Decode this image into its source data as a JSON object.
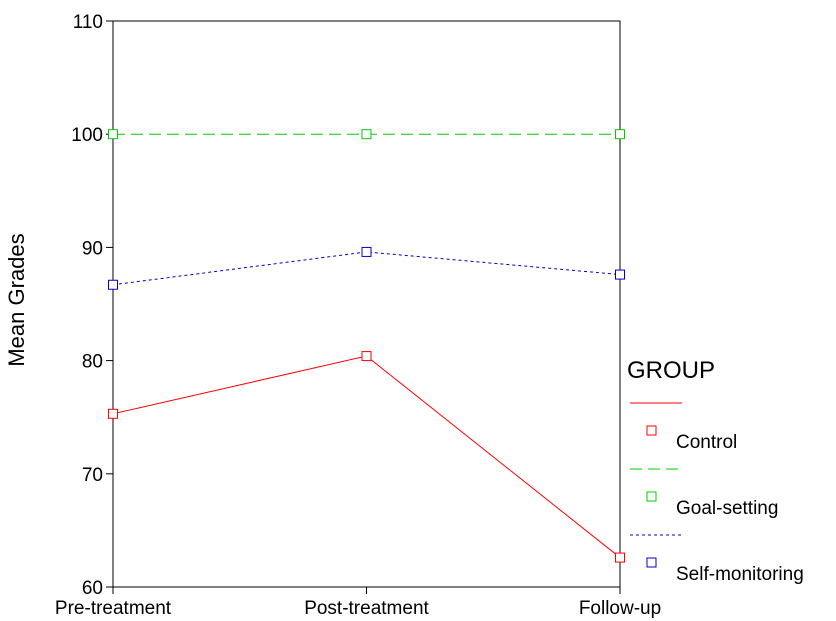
{
  "chart_data": {
    "type": "line",
    "title": "",
    "xlabel": "",
    "ylabel": "Mean Grades",
    "categories": [
      "Pre-treatment",
      "Post-treatment",
      "Follow-up"
    ],
    "ylim": [
      60,
      110
    ],
    "yticks": [
      60,
      70,
      80,
      90,
      100,
      110
    ],
    "grid": false,
    "legend": {
      "title": "GROUP",
      "position": "right"
    },
    "series": [
      {
        "name": "Control",
        "values": [
          75.3,
          80.4,
          62.6
        ],
        "color": "#ff0000",
        "line_style": "solid",
        "marker": "square"
      },
      {
        "name": "Goal-setting",
        "values": [
          100,
          100,
          100
        ],
        "color": "#00cc00",
        "line_style": "dashed",
        "marker": "square"
      },
      {
        "name": "Self-monitoring",
        "values": [
          86.7,
          89.6,
          87.6
        ],
        "color": "#0000cc",
        "line_style": "dotted",
        "marker": "square"
      }
    ]
  }
}
